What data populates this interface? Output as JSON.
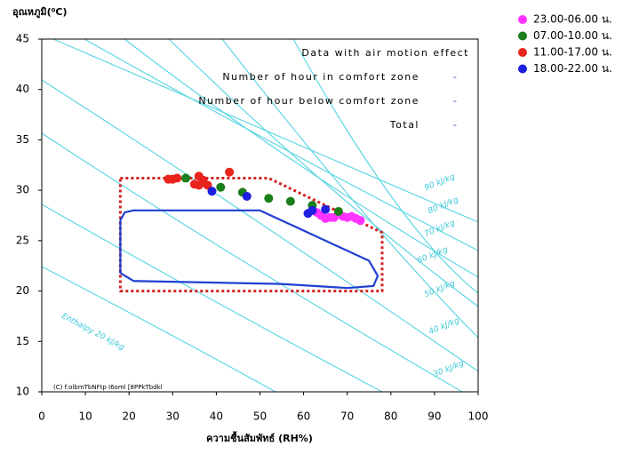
{
  "chart_data": {
    "type": "scatter",
    "y_label": "อุณหภูมิ(⁰C)",
    "x_label": "ความชื้นสัมพัทธ์ (RH%)",
    "xlim": [
      0,
      100
    ],
    "xticks": [
      0,
      10,
      20,
      30,
      40,
      50,
      60,
      70,
      80,
      90,
      100
    ],
    "ylim": [
      10,
      45
    ],
    "yticks": [
      10,
      15,
      20,
      25,
      30,
      35,
      40,
      45
    ],
    "legend": "right",
    "series": [
      {
        "name": "23.00-06.00 น.",
        "color": "#ff33ff",
        "x": [
          63,
          64,
          65,
          66,
          67,
          69,
          70,
          71,
          72,
          73
        ],
        "y": [
          27.8,
          27.5,
          27.2,
          27.3,
          27.3,
          27.4,
          27.3,
          27.4,
          27.2,
          27.0
        ]
      },
      {
        "name": "07.00-10.00 น.",
        "color": "#1a7f1a",
        "x": [
          33,
          37,
          41,
          46,
          52,
          57,
          62,
          68
        ],
        "y": [
          31.2,
          30.8,
          30.3,
          29.8,
          29.2,
          28.9,
          28.5,
          27.9
        ]
      },
      {
        "name": "11.00-17.00 น.",
        "color": "#e8231b",
        "x": [
          29,
          30,
          31,
          35,
          36,
          36,
          37,
          38,
          43
        ],
        "y": [
          31.1,
          31.1,
          31.2,
          30.6,
          31.4,
          30.5,
          31.0,
          30.5,
          31.8
        ]
      },
      {
        "name": "18.00-22.00 น.",
        "color": "#1f1fe0",
        "x": [
          39,
          47,
          61,
          62,
          65
        ],
        "y": [
          29.9,
          29.4,
          27.7,
          28.0,
          28.1
        ]
      }
    ],
    "comfort_zone": {
      "color": "#1f3fd0",
      "x": [
        18,
        19,
        21,
        50,
        75,
        77,
        76,
        70,
        55,
        21,
        18,
        18
      ],
      "y": [
        27,
        27.8,
        28,
        28,
        23,
        21.5,
        20.5,
        20.3,
        20.7,
        21,
        21.8,
        27
      ]
    },
    "comfort_zone_air_motion": {
      "color": "#d42020",
      "x": [
        18,
        52,
        78,
        78,
        18,
        18
      ],
      "y": [
        31.2,
        31.2,
        25.8,
        20,
        20,
        31.2
      ]
    },
    "table": [
      [
        "Data with air motion effect",
        ""
      ],
      [
        "Number of hour in comfort zone",
        "-"
      ],
      [
        "Number of hour below comfort zone",
        "-"
      ],
      [
        "Total",
        "-"
      ]
    ],
    "enthalpy_labels": [
      "90 kJ/kg",
      "80 kJ/kg",
      "70 kJ/kg",
      "60 kJ/kg",
      "50 kJ/kg",
      "40 kJ/kg",
      "30 kJ/kg",
      "Enthalpy 20 kJ/kg"
    ],
    "footnote": "(C) f:olbmTbNFtp I6oml [8PPkTbdkl"
  }
}
